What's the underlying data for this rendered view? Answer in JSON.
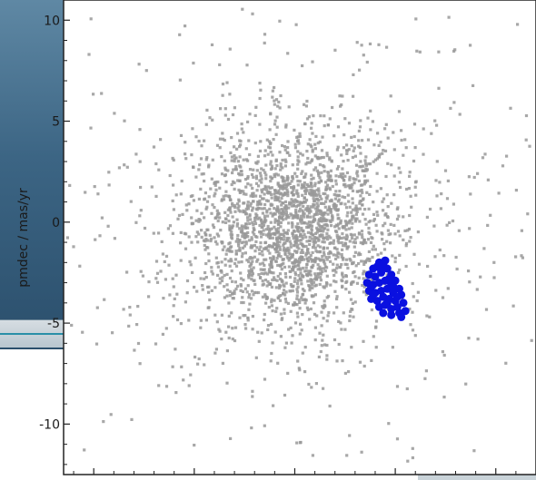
{
  "chart_data": {
    "type": "scatter",
    "title": "",
    "xlabel": "",
    "ylabel": "pmdec / mas/yr",
    "ylim": [
      -12.5,
      11
    ],
    "y_ticks": [
      10,
      5,
      0,
      -5,
      -10
    ],
    "y_tick_labels": [
      "10",
      "5",
      "0",
      "-5",
      "-10"
    ],
    "grid": false,
    "series": [
      {
        "color": "#999999",
        "marker": "square",
        "distribution": {
          "center_x": 0.0,
          "center_y": -0.3,
          "core_sigma": 2.3,
          "halo_sigma": 5.2,
          "count": 2600
        }
      },
      {
        "color": "#0a10e0",
        "marker": "circle",
        "points": [
          [
            3.9,
            -2.3
          ],
          [
            4.2,
            -2.0
          ],
          [
            4.5,
            -1.9
          ],
          [
            3.7,
            -2.6
          ],
          [
            4.0,
            -2.7
          ],
          [
            4.3,
            -2.5
          ],
          [
            4.6,
            -2.3
          ],
          [
            4.8,
            -2.6
          ],
          [
            3.6,
            -3.0
          ],
          [
            3.9,
            -3.1
          ],
          [
            4.2,
            -3.0
          ],
          [
            4.5,
            -2.9
          ],
          [
            4.8,
            -3.1
          ],
          [
            5.0,
            -2.9
          ],
          [
            3.7,
            -3.4
          ],
          [
            4.0,
            -3.5
          ],
          [
            4.3,
            -3.4
          ],
          [
            4.6,
            -3.3
          ],
          [
            4.9,
            -3.5
          ],
          [
            5.2,
            -3.3
          ],
          [
            3.8,
            -3.8
          ],
          [
            4.1,
            -3.9
          ],
          [
            4.4,
            -3.7
          ],
          [
            4.7,
            -3.8
          ],
          [
            5.0,
            -3.9
          ],
          [
            5.3,
            -3.6
          ],
          [
            4.2,
            -4.2
          ],
          [
            4.5,
            -4.1
          ],
          [
            4.8,
            -4.3
          ],
          [
            5.1,
            -4.2
          ],
          [
            5.4,
            -4.0
          ],
          [
            4.4,
            -4.5
          ],
          [
            4.8,
            -4.6
          ],
          [
            5.2,
            -4.5
          ],
          [
            5.5,
            -4.4
          ],
          [
            4.1,
            -2.2
          ],
          [
            4.4,
            -2.1
          ],
          [
            4.7,
            -2.8
          ],
          [
            3.8,
            -3.2
          ],
          [
            5.1,
            -3.7
          ],
          [
            4.6,
            -4.0
          ],
          [
            5.3,
            -4.7
          ],
          [
            3.9,
            -3.6
          ],
          [
            4.3,
            -2.4
          ],
          [
            4.9,
            -3.2
          ]
        ]
      }
    ]
  },
  "plot_area": {
    "background": "#ffffff",
    "frame_color": "#222222"
  }
}
